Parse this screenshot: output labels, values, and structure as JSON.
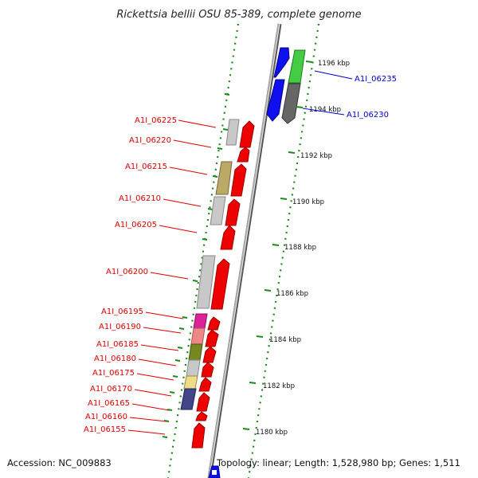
{
  "title": "Rickettsia bellii OSU 85-389, complete genome",
  "colors": {
    "backbone": "#999999",
    "ruler_dots": "#1a8a1a",
    "left_strand_labels": "#dd0000",
    "right_strand_labels": "#0000cc"
  },
  "ruler": {
    "ticks": [
      {
        "label": "1196 kbp"
      },
      {
        "label": "1194 kbp"
      },
      {
        "label": "1192 kbp"
      },
      {
        "label": "1190 kbp"
      },
      {
        "label": "1188 kbp"
      },
      {
        "label": "1186 kbp"
      },
      {
        "label": "1184 kbp"
      },
      {
        "label": "1182 kbp"
      },
      {
        "label": "1180 kbp"
      }
    ]
  },
  "genes": [
    {
      "locus": "A1I_06235",
      "side": "right",
      "label_color": "#0000cc"
    },
    {
      "locus": "A1I_06230",
      "side": "right",
      "label_color": "#0000cc"
    },
    {
      "locus": "A1I_06225",
      "side": "left",
      "label_color": "#dd0000"
    },
    {
      "locus": "A1I_06220",
      "side": "left",
      "label_color": "#dd0000"
    },
    {
      "locus": "A1I_06215",
      "side": "left",
      "label_color": "#dd0000"
    },
    {
      "locus": "A1I_06210",
      "side": "left",
      "label_color": "#dd0000"
    },
    {
      "locus": "A1I_06205",
      "side": "left",
      "label_color": "#dd0000"
    },
    {
      "locus": "A1I_06200",
      "side": "left",
      "label_color": "#dd0000"
    },
    {
      "locus": "A1I_06195",
      "side": "left",
      "label_color": "#dd0000"
    },
    {
      "locus": "A1I_06190",
      "side": "left",
      "label_color": "#dd0000"
    },
    {
      "locus": "A1I_06185",
      "side": "left",
      "label_color": "#dd0000"
    },
    {
      "locus": "A1I_06180",
      "side": "left",
      "label_color": "#dd0000"
    },
    {
      "locus": "A1I_06175",
      "side": "left",
      "label_color": "#dd0000"
    },
    {
      "locus": "A1I_06170",
      "side": "left",
      "label_color": "#dd0000"
    },
    {
      "locus": "A1I_06165",
      "side": "left",
      "label_color": "#dd0000"
    },
    {
      "locus": "A1I_06160",
      "side": "left",
      "label_color": "#dd0000"
    },
    {
      "locus": "A1I_06155",
      "side": "left",
      "label_color": "#dd0000"
    }
  ],
  "footer": {
    "accession": "Accession: NC_009883",
    "topology": "Topology: linear; Length: 1,528,980 bp; Genes: 1,511"
  }
}
